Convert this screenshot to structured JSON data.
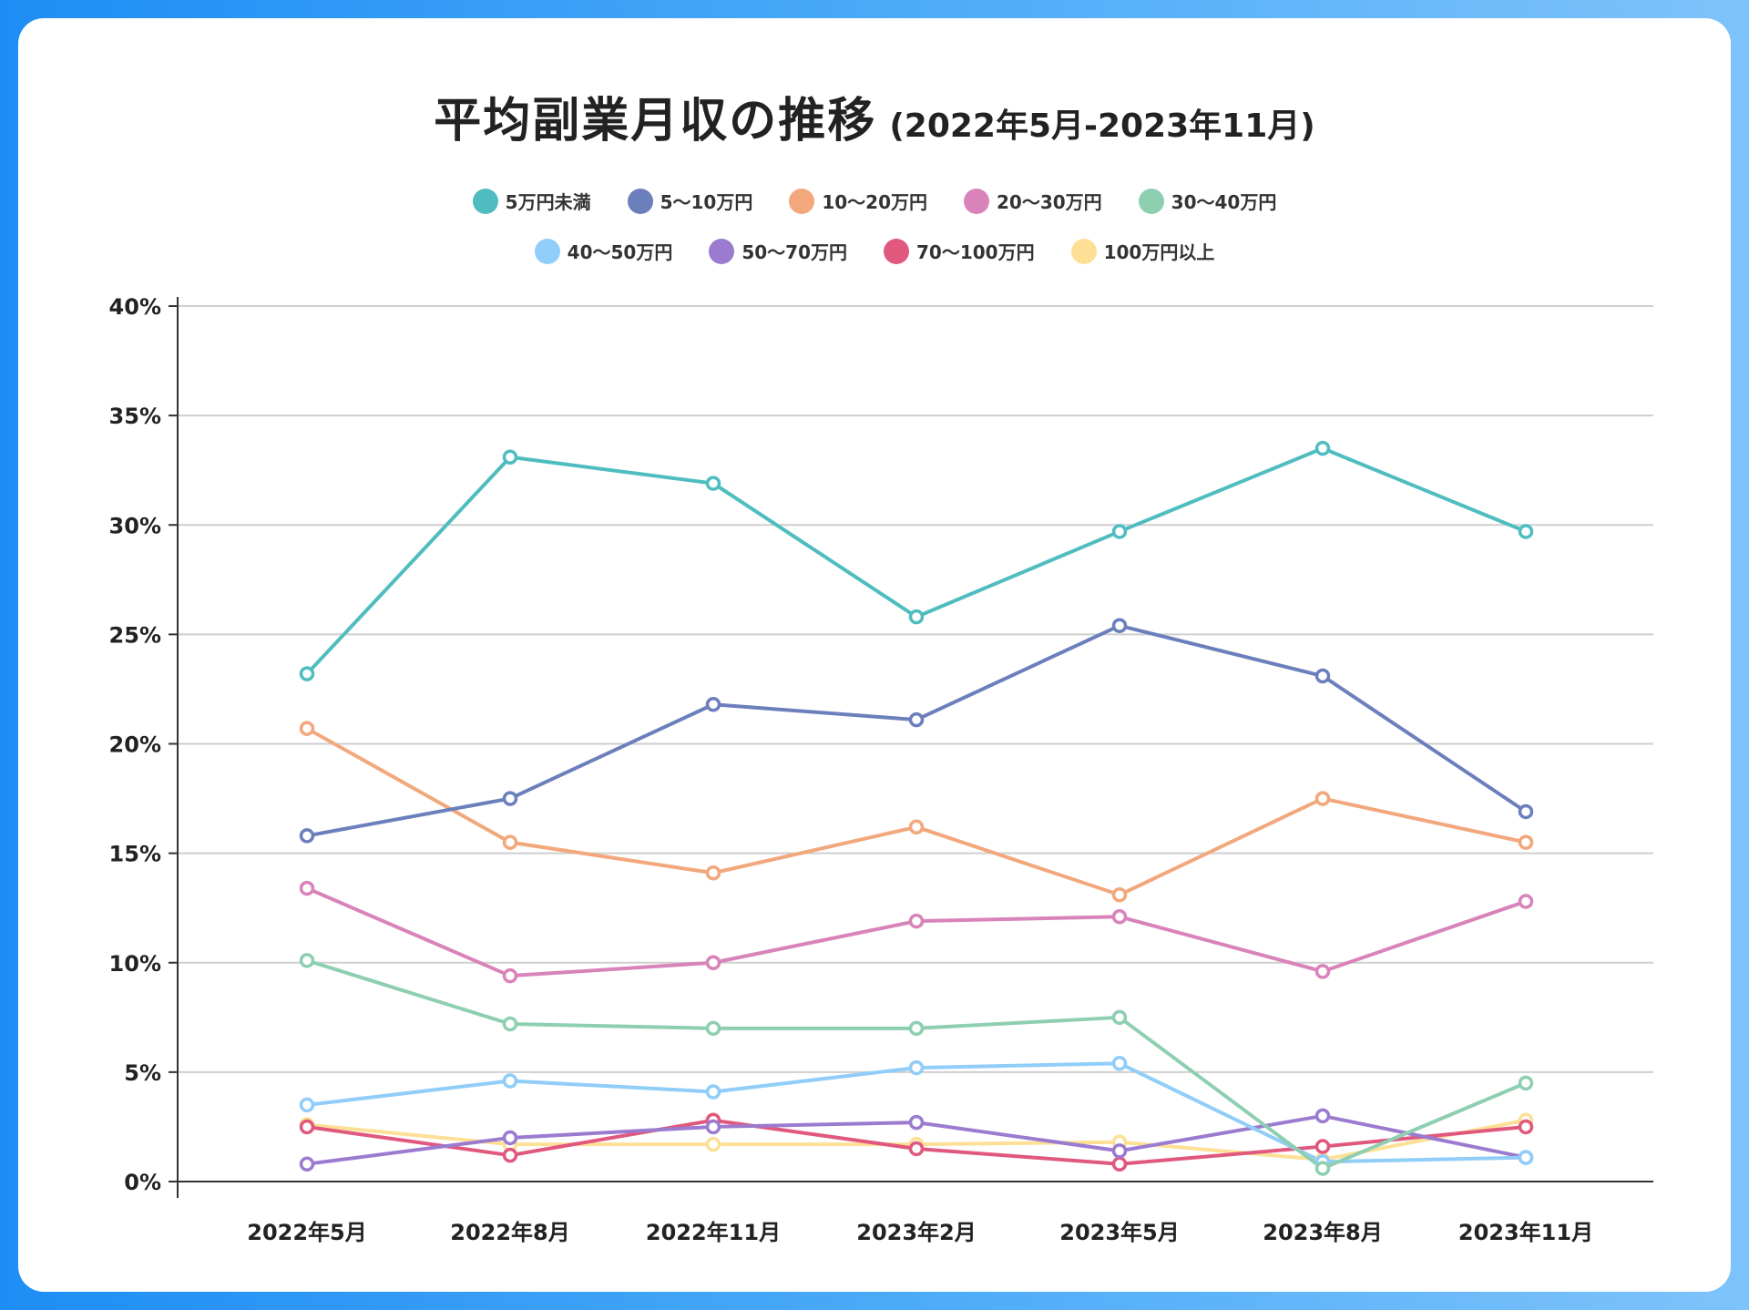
{
  "chart_data": {
    "type": "line",
    "title": "平均副業月収の推移",
    "subtitle": "(2022年5月-2023年11月)",
    "xlabel": "",
    "ylabel": "",
    "categories": [
      "2022年5月",
      "2022年8月",
      "2022年11月",
      "2023年2月",
      "2023年5月",
      "2023年8月",
      "2023年11月"
    ],
    "y_ticks": [
      "0%",
      "5%",
      "10%",
      "15%",
      "20%",
      "25%",
      "30%",
      "35%",
      "40%"
    ],
    "ylim": [
      0,
      40
    ],
    "grid": true,
    "legend_position": "top",
    "series": [
      {
        "name": "5万円未満",
        "color": "#4fbdbf",
        "values": [
          23.2,
          33.1,
          31.9,
          25.8,
          29.7,
          33.5,
          29.7
        ]
      },
      {
        "name": "5〜10万円",
        "color": "#6b7fbc",
        "values": [
          15.8,
          17.5,
          21.8,
          21.1,
          25.4,
          23.1,
          16.9
        ]
      },
      {
        "name": "10〜20万円",
        "color": "#f2a77c",
        "values": [
          20.7,
          15.5,
          14.1,
          16.2,
          13.1,
          17.5,
          15.5
        ]
      },
      {
        "name": "20〜30万円",
        "color": "#d883b9",
        "values": [
          13.4,
          9.4,
          10.0,
          11.9,
          12.1,
          9.6,
          12.8
        ]
      },
      {
        "name": "30〜40万円",
        "color": "#8ecfb1",
        "values": [
          10.1,
          7.2,
          7.0,
          7.0,
          7.5,
          0.6,
          4.5
        ]
      },
      {
        "name": "40〜50万円",
        "color": "#90cdf8",
        "values": [
          3.5,
          4.6,
          4.1,
          5.2,
          5.4,
          0.9,
          1.1
        ]
      },
      {
        "name": "50〜70万円",
        "color": "#9b7bd0",
        "values": [
          0.8,
          2.0,
          2.5,
          2.7,
          1.4,
          3.0,
          1.1
        ]
      },
      {
        "name": "70〜100万円",
        "color": "#e0587d",
        "values": [
          2.5,
          1.2,
          2.8,
          1.5,
          0.8,
          1.6,
          2.5
        ]
      },
      {
        "name": "100万円以上",
        "color": "#fde096",
        "values": [
          2.6,
          1.7,
          1.7,
          1.7,
          1.8,
          1.0,
          2.8
        ]
      }
    ]
  }
}
